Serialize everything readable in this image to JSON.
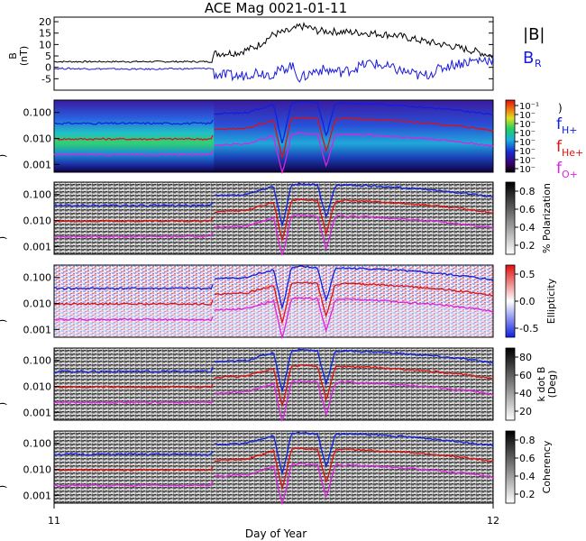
{
  "title": "ACE Mag 0021-01-11",
  "xlabel": "Day of Year",
  "colors": {
    "br": "#1a1adb",
    "fH": "#1020e0",
    "fHe": "#e01010",
    "fO": "#e020e0"
  },
  "chart_data": [
    {
      "type": "line",
      "panel": "magnetic-field",
      "ylabel": "B (nT)",
      "ylim": [
        -10,
        22
      ],
      "yticks": [
        "20",
        "15",
        "10",
        "5",
        "0",
        "-5"
      ],
      "xlim": [
        11,
        12
      ],
      "xticks": [
        "11",
        "12"
      ],
      "series": [
        {
          "name": "|B|",
          "x": [
            11.0,
            11.2,
            11.36,
            11.364,
            11.42,
            11.46,
            11.5,
            11.54,
            11.56,
            11.58,
            11.6,
            11.66,
            11.72,
            11.78,
            11.84,
            11.9,
            11.96,
            12.0
          ],
          "y": [
            2.5,
            2.5,
            2.5,
            6.0,
            6.5,
            9.0,
            14.5,
            16.0,
            18.0,
            17.5,
            16.0,
            15.5,
            15.0,
            14.0,
            11.5,
            9.5,
            7.0,
            5.0
          ]
        },
        {
          "name": "B_R",
          "x": [
            11.0,
            11.2,
            11.36,
            11.364,
            11.42,
            11.46,
            11.5,
            11.54,
            11.56,
            11.6,
            11.66,
            11.72,
            11.78,
            11.84,
            11.9,
            11.96,
            12.0
          ],
          "y": [
            -0.5,
            -0.8,
            -0.5,
            -3.0,
            -4.0,
            -2.0,
            -3.0,
            1.0,
            -5.0,
            -1.0,
            -2.0,
            2.0,
            -1.0,
            -4.0,
            1.0,
            3.0,
            3.5
          ]
        }
      ]
    },
    {
      "type": "heatmap",
      "panel": "power-spectrum",
      "ylabel": "Freq (Hz)",
      "ylim": [
        0.0005,
        0.3
      ],
      "yscale": "log",
      "yticks": [
        "0.100",
        "0.010",
        "0.001"
      ],
      "colorbar_ticks": [
        "10⁻¹",
        "10⁻",
        "10⁻",
        "10⁻",
        "10⁻",
        "10⁻",
        "10⁻",
        "10⁻"
      ],
      "legend": [
        "f_H+",
        "f_He+",
        "f_O+"
      ]
    },
    {
      "type": "heatmap",
      "panel": "polarization",
      "ylabel": "Freq (Hz)",
      "ylim": [
        0.0005,
        0.3
      ],
      "yscale": "log",
      "yticks": [
        "0.100",
        "0.010",
        "0.001"
      ],
      "colorbar_label": "% Polarization",
      "colorbar_ticks": [
        "0.8",
        "0.6",
        "0.4",
        "0.2"
      ]
    },
    {
      "type": "heatmap",
      "panel": "ellipticity",
      "ylabel": "Freq (Hz)",
      "ylim": [
        0.0005,
        0.3
      ],
      "yscale": "log",
      "yticks": [
        "0.100",
        "0.010",
        "0.001"
      ],
      "colorbar_label": "Ellipticity",
      "colorbar_ticks": [
        "0.5",
        "0.0",
        "-0.5"
      ]
    },
    {
      "type": "heatmap",
      "panel": "k-dot-b",
      "ylabel": "Freq (Hz)",
      "ylim": [
        0.0005,
        0.3
      ],
      "yscale": "log",
      "yticks": [
        "0.100",
        "0.010",
        "0.001"
      ],
      "colorbar_label": "k dot B (Deg)",
      "colorbar_ticks": [
        "80",
        "60",
        "40",
        "20"
      ]
    },
    {
      "type": "heatmap",
      "panel": "coherency",
      "ylabel": "Freq (Hz)",
      "ylim": [
        0.0005,
        0.3
      ],
      "yscale": "log",
      "yticks": [
        "0.100",
        "0.010",
        "0.001"
      ],
      "colorbar_label": "Coherency",
      "colorbar_ticks": [
        "0.8",
        "0.6",
        "0.4",
        "0.2"
      ]
    }
  ],
  "gyro_lines": {
    "x": [
      11.0,
      11.1,
      11.2,
      11.3,
      11.36,
      11.364,
      11.42,
      11.44,
      11.46,
      11.5,
      11.52,
      11.54,
      11.56,
      11.58,
      11.6,
      11.62,
      11.64,
      11.66,
      11.7,
      11.74,
      11.8,
      11.86,
      11.92,
      11.96,
      12.0
    ],
    "fH": [
      0.038,
      0.038,
      0.038,
      0.038,
      0.038,
      0.09,
      0.095,
      0.1,
      0.13,
      0.2,
      0.006,
      0.23,
      0.26,
      0.25,
      0.23,
      0.012,
      0.22,
      0.23,
      0.22,
      0.21,
      0.18,
      0.15,
      0.12,
      0.1,
      0.08
    ],
    "fHe": [
      0.0095,
      0.0095,
      0.0095,
      0.0095,
      0.0095,
      0.022,
      0.024,
      0.025,
      0.032,
      0.05,
      0.0016,
      0.058,
      0.065,
      0.062,
      0.058,
      0.003,
      0.055,
      0.058,
      0.055,
      0.052,
      0.045,
      0.038,
      0.03,
      0.025,
      0.02
    ],
    "fO": [
      0.0024,
      0.0024,
      0.0024,
      0.0024,
      0.0024,
      0.0055,
      0.006,
      0.0063,
      0.008,
      0.0125,
      0.0004,
      0.0145,
      0.016,
      0.0155,
      0.0145,
      0.0008,
      0.014,
      0.0145,
      0.014,
      0.013,
      0.011,
      0.0095,
      0.0075,
      0.0063,
      0.005
    ]
  },
  "legend_top": [
    "|B|",
    "B",
    "R"
  ],
  "legend_spec": [
    {
      "main": "f",
      "sub": "H+"
    },
    {
      "main": "f",
      "sub": "He+"
    },
    {
      "main": "f",
      "sub": "O+"
    }
  ],
  "b_ylabel_main": "B",
  "b_ylabel_unit": "(nT)",
  "freq_ylabel_fragment": ")"
}
